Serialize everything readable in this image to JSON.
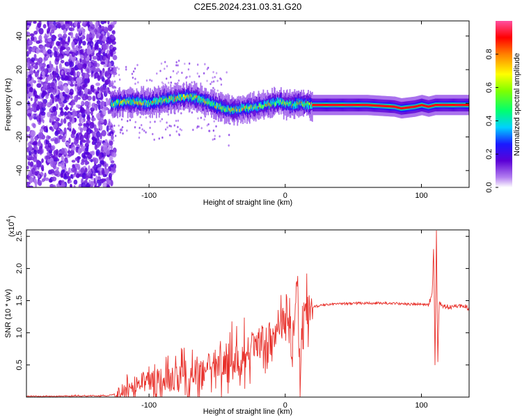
{
  "title": "C2E5.2024.231.03.31.G20",
  "chart_data": [
    {
      "type": "heatmap",
      "xlabel": "Height of straight line (km)",
      "ylabel": "Frequency (Hz)",
      "xlim": [
        -190,
        135
      ],
      "ylim": [
        -50,
        49
      ],
      "x_ticks": [
        "-100",
        "0",
        "100"
      ],
      "y_ticks": [
        "40",
        "20",
        "0",
        "-20",
        "-40"
      ],
      "colorbar": {
        "label": "Normalized spectral amplitude",
        "range": [
          0,
          1
        ],
        "ticks": [
          "0.0",
          "0.2",
          "0.4",
          "0.6",
          "0.8"
        ]
      },
      "ridge": {
        "x": [
          -128,
          -115,
          -100,
          -90,
          -80,
          -72,
          -65,
          -58,
          -52,
          -45,
          -38,
          -30,
          -22,
          -15,
          -10,
          -5,
          0,
          5,
          10,
          20,
          40,
          60,
          80,
          85,
          95,
          100,
          105,
          110,
          135
        ],
        "y": [
          0,
          1,
          0,
          2,
          3,
          4,
          3,
          1,
          -1,
          -3,
          -4,
          -3,
          -2,
          -1,
          0,
          1,
          0,
          -1,
          0,
          -1,
          -1,
          -1,
          -2,
          -3,
          -2,
          -1,
          -2,
          -1,
          -1
        ]
      }
    },
    {
      "type": "line",
      "xlabel": "Height of straight line (km)",
      "ylabel": "SNR (10 * v/v)",
      "y_multiplier": "(x10",
      "y_multiplier_exp": "4",
      "xlim": [
        -190,
        135
      ],
      "ylim": [
        0,
        2.6
      ],
      "x_ticks": [
        "-100",
        "0",
        "100"
      ],
      "y_ticks": [
        "0.5",
        "1.0",
        "1.5",
        "2.0",
        "2.5"
      ],
      "color": "#e8302a",
      "series": [
        {
          "x": [
            -190,
            -130,
            -120,
            -110,
            -100,
            -90,
            -80,
            -70,
            -60,
            -55,
            -50,
            -45,
            -40,
            -35,
            -30,
            -25,
            -20,
            -15,
            -10,
            -5,
            0,
            3,
            5,
            8,
            9,
            10,
            11,
            12,
            13,
            15,
            20,
            25,
            30,
            40,
            50,
            60,
            70,
            80,
            88,
            90,
            95,
            100,
            105,
            108,
            109,
            110,
            111,
            112,
            113,
            115,
            120,
            130,
            135
          ],
          "y": [
            0.01,
            0.02,
            0.08,
            0.18,
            0.25,
            0.3,
            0.28,
            0.22,
            0.4,
            0.5,
            0.55,
            0.6,
            0.58,
            0.66,
            0.7,
            0.75,
            0.82,
            0.9,
            1.0,
            1.05,
            1.12,
            1.2,
            0.55,
            1.5,
            1.8,
            0.9,
            0.5,
            1.1,
            1.2,
            1.32,
            1.4,
            1.42,
            1.44,
            1.45,
            1.46,
            1.46,
            1.46,
            1.46,
            1.45,
            1.44,
            1.45,
            1.45,
            1.43,
            1.6,
            2.4,
            0.4,
            2.6,
            0.5,
            1.5,
            1.42,
            1.4,
            1.41,
            1.39
          ]
        }
      ]
    }
  ]
}
